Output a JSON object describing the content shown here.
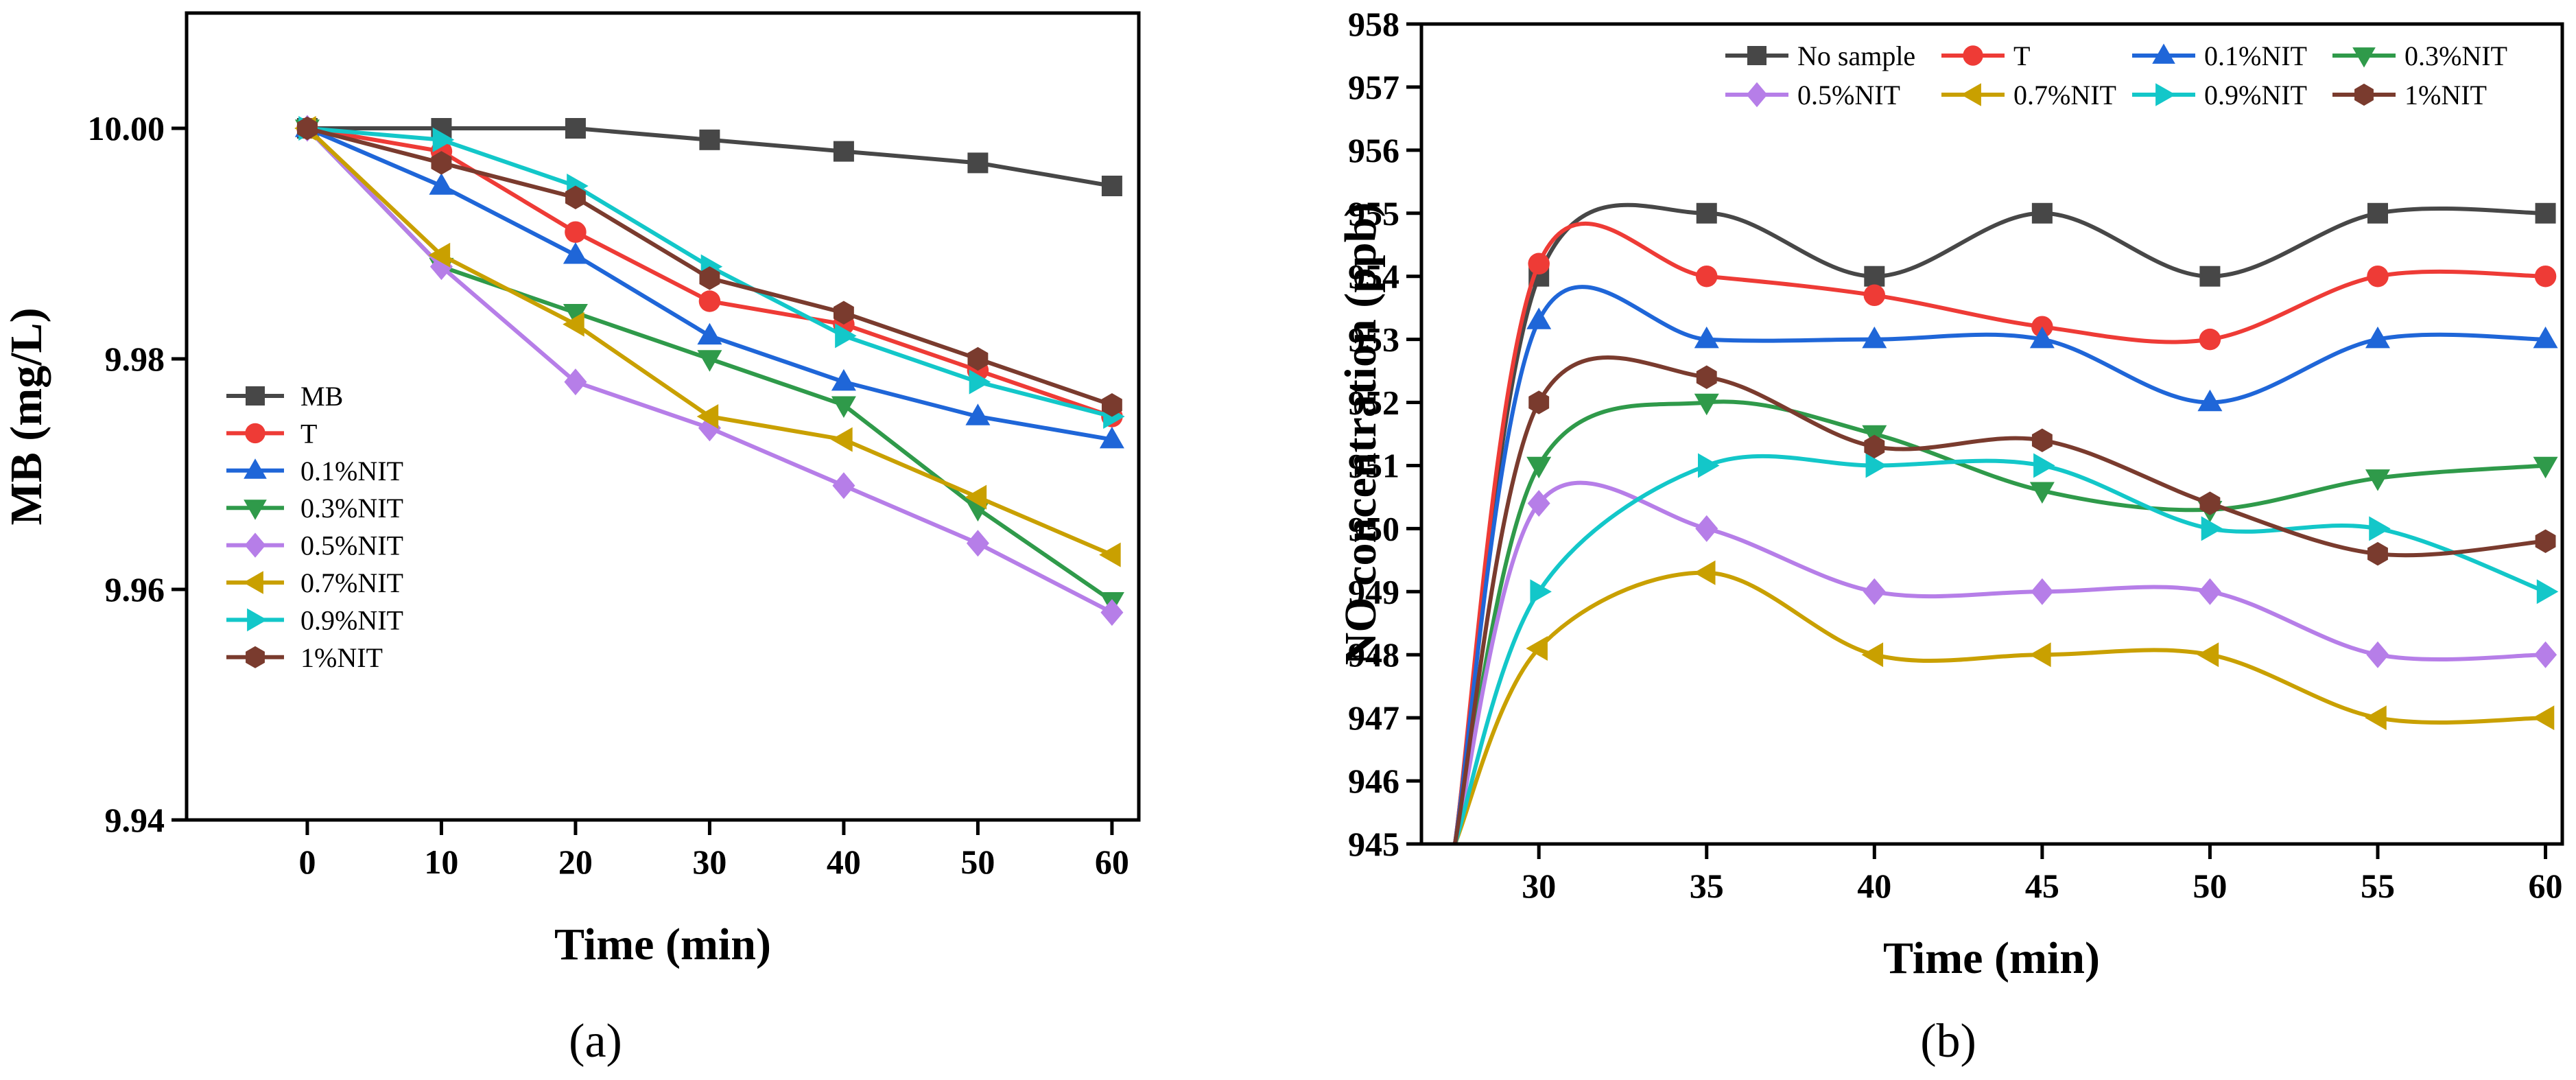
{
  "chart_data": [
    {
      "type": "line",
      "panel_label": "(a)",
      "xlabel": "Time (min)",
      "ylabel": "MB (mg/L)",
      "xlim": [
        -9,
        62
      ],
      "ylim": [
        9.94,
        10.01
      ],
      "xticks": [
        0,
        10,
        20,
        30,
        40,
        50,
        60
      ],
      "yticks": [
        9.94,
        9.96,
        9.98,
        10.0
      ],
      "ytick_labels": [
        "9.94",
        "9.96",
        "9.98",
        "10.00"
      ],
      "legend_position": "left-middle",
      "x": [
        0,
        10,
        20,
        30,
        40,
        50,
        60
      ],
      "series": [
        {
          "name": "MB",
          "color": "#474747",
          "marker": "square",
          "values": [
            10.0,
            10.0,
            10.0,
            9.999,
            9.998,
            9.997,
            9.995
          ]
        },
        {
          "name": "T",
          "color": "#ee3b36",
          "marker": "circle",
          "values": [
            10.0,
            9.998,
            9.991,
            9.985,
            9.983,
            9.979,
            9.975
          ]
        },
        {
          "name": "0.1%NIT",
          "color": "#1f66d8",
          "marker": "triangle-up",
          "values": [
            10.0,
            9.995,
            9.989,
            9.982,
            9.978,
            9.975,
            9.973
          ]
        },
        {
          "name": "0.3%NIT",
          "color": "#2f9a4a",
          "marker": "triangle-down",
          "values": [
            10.0,
            9.988,
            9.984,
            9.98,
            9.976,
            9.967,
            9.959
          ]
        },
        {
          "name": "0.5%NIT",
          "color": "#b67ee8",
          "marker": "diamond",
          "values": [
            10.0,
            9.988,
            9.978,
            9.974,
            9.969,
            9.964,
            9.958
          ]
        },
        {
          "name": "0.7%NIT",
          "color": "#c9a000",
          "marker": "triangle-left",
          "values": [
            10.0,
            9.989,
            9.983,
            9.975,
            9.973,
            9.968,
            9.963
          ]
        },
        {
          "name": "0.9%NIT",
          "color": "#13c7c9",
          "marker": "triangle-right",
          "values": [
            10.0,
            9.999,
            9.995,
            9.988,
            9.982,
            9.978,
            9.975
          ]
        },
        {
          "name": "1%NIT",
          "color": "#7a3b2e",
          "marker": "hexagon",
          "values": [
            10.0,
            9.997,
            9.994,
            9.987,
            9.984,
            9.98,
            9.976
          ]
        }
      ]
    },
    {
      "type": "line",
      "panel_label": "(b)",
      "xlabel": "Time (min)",
      "ylabel": "NO concentration (ppb)",
      "xlim": [
        26.5,
        60.5
      ],
      "ylim": [
        945,
        958
      ],
      "xticks": [
        30,
        35,
        40,
        45,
        50,
        55,
        60
      ],
      "yticks": [
        945,
        946,
        947,
        948,
        949,
        950,
        951,
        952,
        953,
        954,
        955,
        956,
        957,
        958
      ],
      "legend_position": "top",
      "smoothed": true,
      "x": [
        27.5,
        30,
        35,
        40,
        45,
        50,
        55,
        60
      ],
      "series": [
        {
          "name": "No sample",
          "color": "#474747",
          "marker": "square",
          "values": [
            945,
            954.0,
            955.0,
            954.0,
            955.0,
            954.0,
            955.0,
            955.0
          ]
        },
        {
          "name": "T",
          "color": "#ee3b36",
          "marker": "circle",
          "values": [
            945,
            954.2,
            954.0,
            953.7,
            953.2,
            953.0,
            954.0,
            954.0
          ]
        },
        {
          "name": "0.1%NIT",
          "color": "#1f66d8",
          "marker": "triangle-up",
          "values": [
            945,
            953.3,
            953.0,
            953.0,
            953.0,
            952.0,
            953.0,
            953.0
          ]
        },
        {
          "name": "0.3%NIT",
          "color": "#2f9a4a",
          "marker": "triangle-down",
          "values": [
            945,
            951.0,
            952.0,
            951.5,
            950.6,
            950.3,
            950.8,
            951.0
          ]
        },
        {
          "name": "0.5%NIT",
          "color": "#b67ee8",
          "marker": "diamond",
          "values": [
            945,
            950.4,
            950.0,
            949.0,
            949.0,
            949.0,
            948.0,
            948.0
          ]
        },
        {
          "name": "0.7%NIT",
          "color": "#c9a000",
          "marker": "triangle-left",
          "values": [
            945,
            948.1,
            949.3,
            948.0,
            948.0,
            948.0,
            947.0,
            947.0
          ]
        },
        {
          "name": "0.9%NIT",
          "color": "#13c7c9",
          "marker": "triangle-right",
          "values": [
            945,
            949.0,
            951.0,
            951.0,
            951.0,
            950.0,
            950.0,
            949.0
          ]
        },
        {
          "name": "1%NIT",
          "color": "#7a3b2e",
          "marker": "hexagon",
          "values": [
            945,
            952.0,
            952.4,
            951.3,
            951.4,
            950.4,
            949.6,
            949.8
          ]
        }
      ]
    }
  ]
}
